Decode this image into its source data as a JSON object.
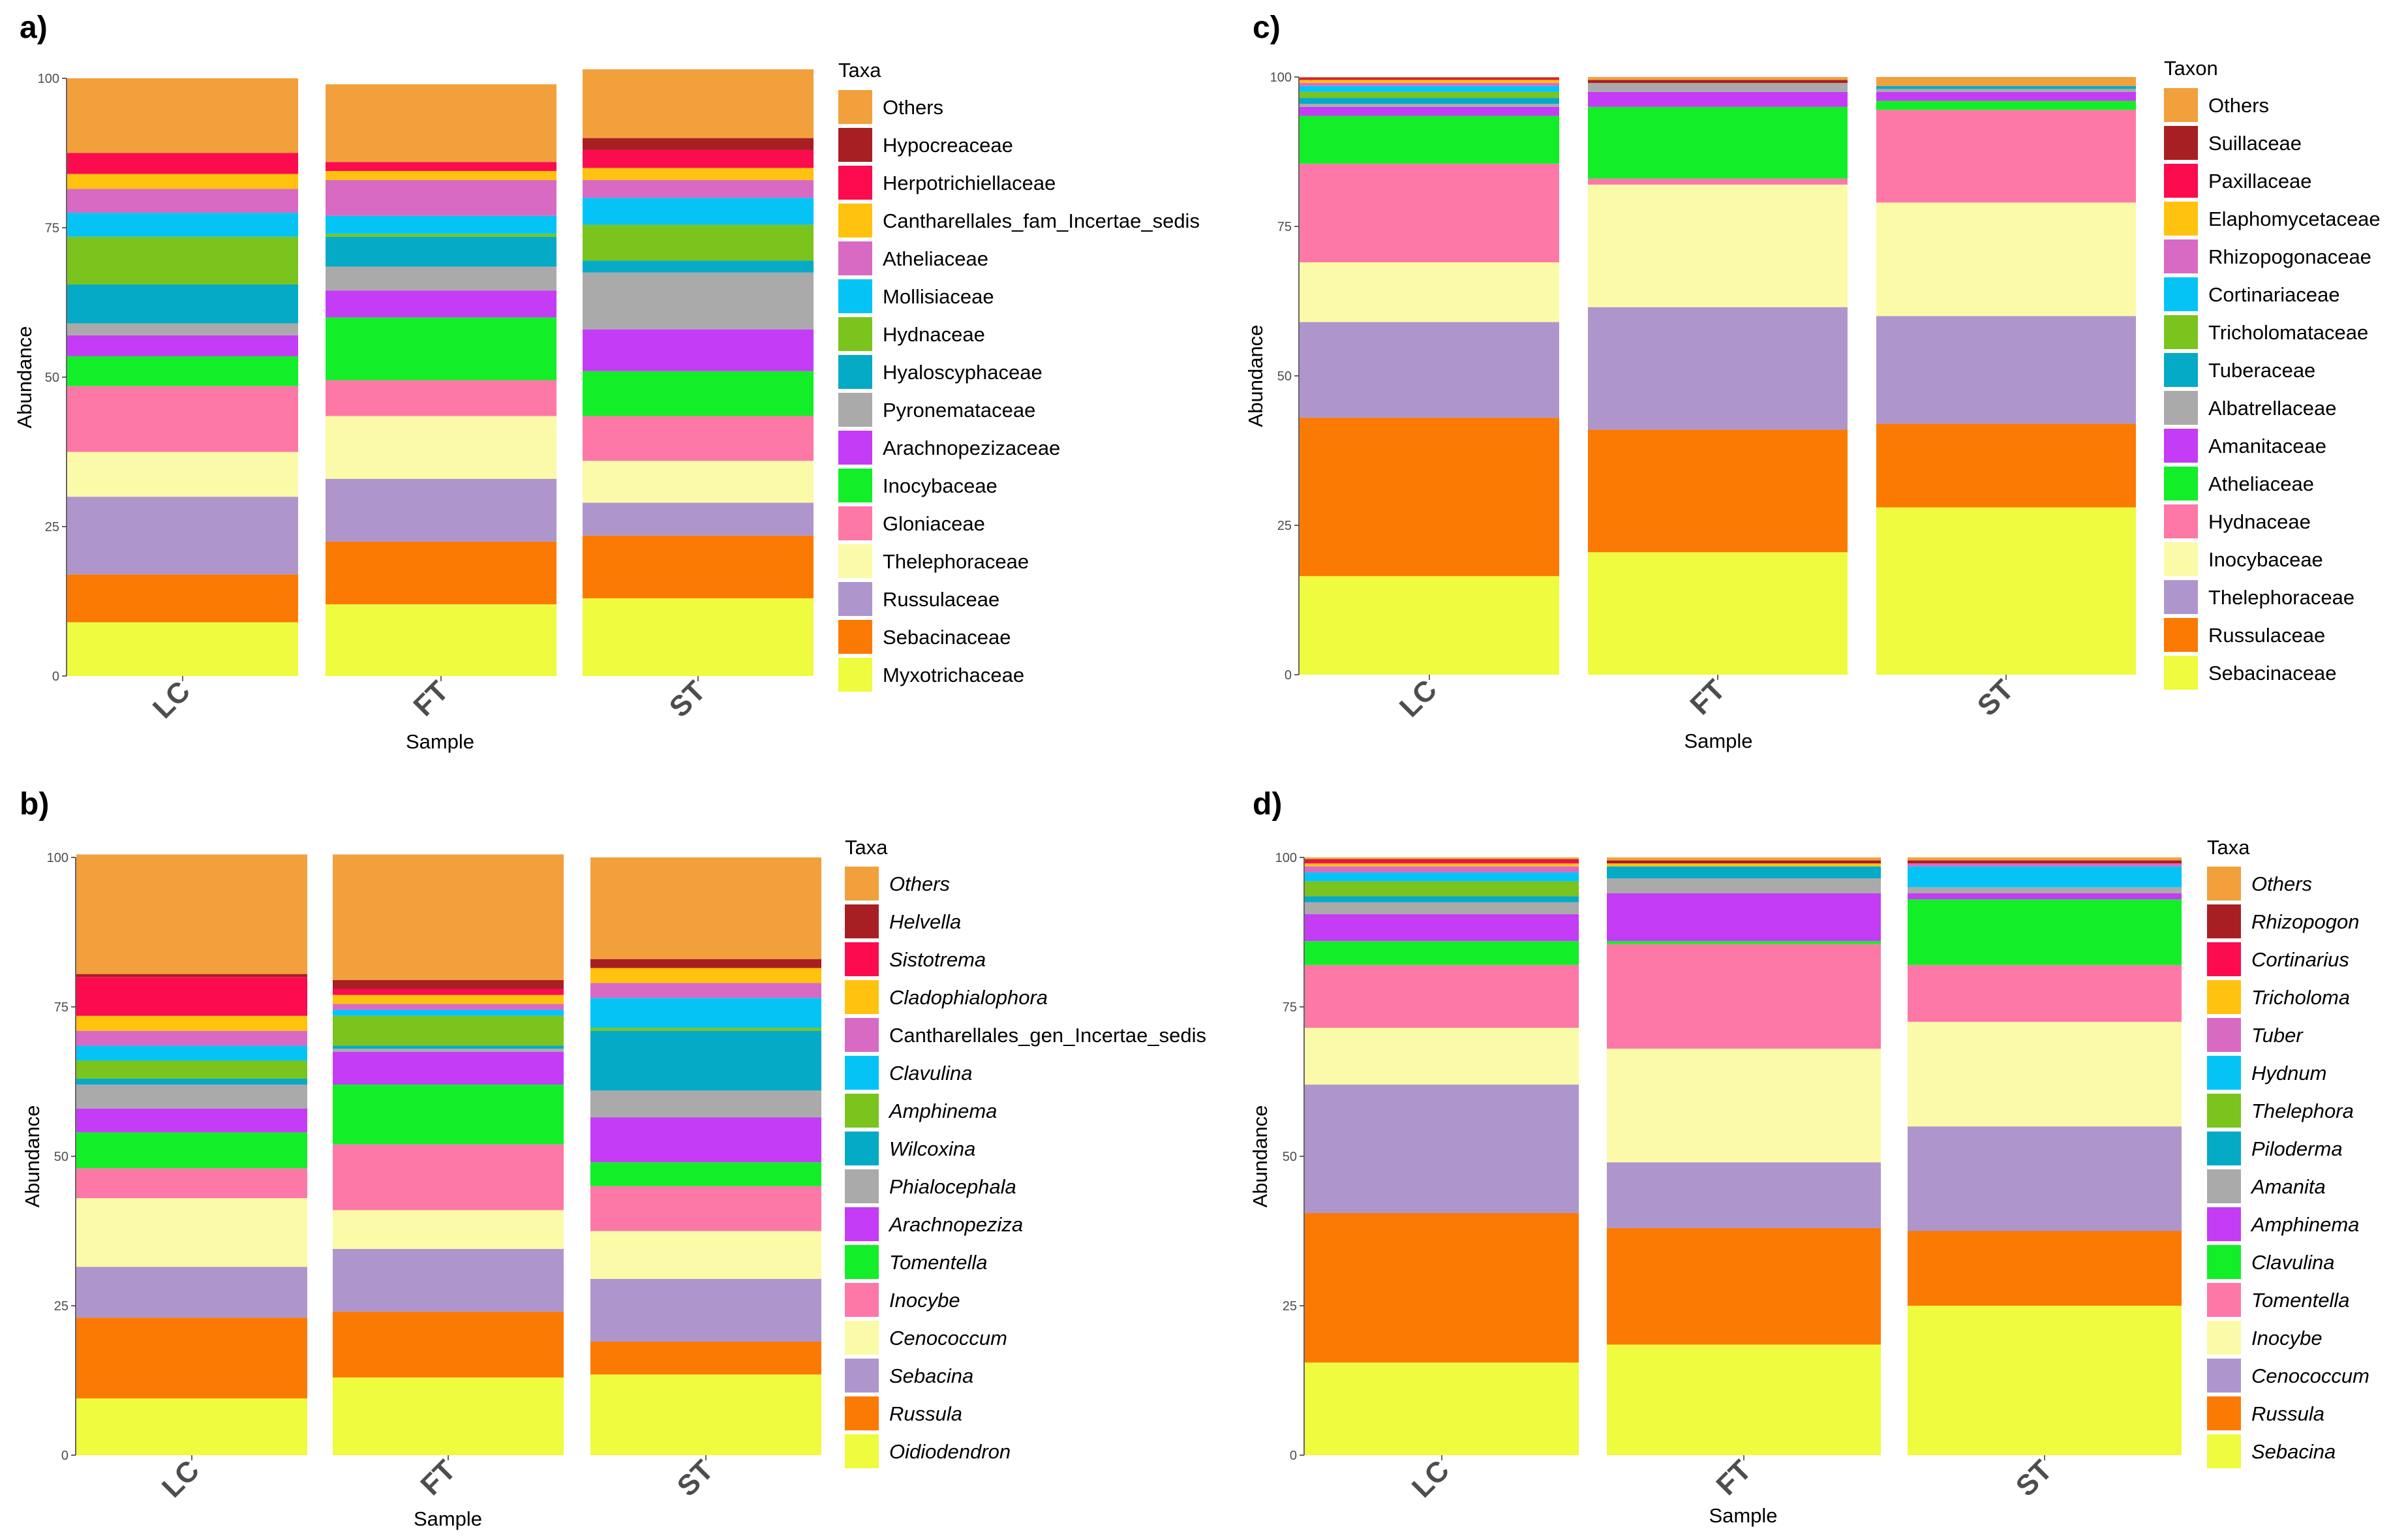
{
  "chart_data": [
    {
      "panel": "a)",
      "type": "bar",
      "stacked": true,
      "categories": [
        "LC",
        "FT",
        "ST"
      ],
      "xlabel": "Sample",
      "ylabel": "Abundance",
      "ylim": [
        0,
        100
      ],
      "yticks": [
        0,
        25,
        50,
        75,
        100
      ],
      "legend_title": "Taxa",
      "legend_italic": false,
      "series": [
        {
          "name": "Myxotrichaceae",
          "color": "#eefb3e",
          "values": [
            9,
            12,
            13
          ]
        },
        {
          "name": "Sebacinaceae",
          "color": "#fb7a03",
          "values": [
            8,
            10.5,
            10.5
          ]
        },
        {
          "name": "Russulaceae",
          "color": "#ae96cd",
          "values": [
            13,
            10.5,
            5.5
          ]
        },
        {
          "name": "Thelephoraceae",
          "color": "#fbfaa8",
          "values": [
            7.5,
            10.5,
            7
          ]
        },
        {
          "name": "Gloniaceae",
          "color": "#fd78a6",
          "values": [
            11,
            6,
            7.5
          ]
        },
        {
          "name": "Inocybaceae",
          "color": "#12ef28",
          "values": [
            5,
            10.5,
            7.5
          ]
        },
        {
          "name": "Arachnopezizaceae",
          "color": "#c43cf5",
          "values": [
            3.5,
            4.5,
            7
          ]
        },
        {
          "name": "Pyronemataceae",
          "color": "#aaaaaa",
          "values": [
            2,
            4,
            9.5
          ]
        },
        {
          "name": "Hyaloscyphaceae",
          "color": "#05aac6",
          "values": [
            6.5,
            5,
            2
          ]
        },
        {
          "name": "Hydnaceae",
          "color": "#7ac41d",
          "values": [
            8,
            0.5,
            6
          ]
        },
        {
          "name": "Mollisiaceae",
          "color": "#05c4f5",
          "values": [
            4,
            3,
            4.5
          ]
        },
        {
          "name": "Atheliaceae",
          "color": "#d86ac4",
          "values": [
            4,
            6,
            3
          ]
        },
        {
          "name": "Cantharellales_fam_Incertae_sedis",
          "color": "#ffc20e",
          "values": [
            2.5,
            1.5,
            2
          ]
        },
        {
          "name": "Herpotrichiellaceae",
          "color": "#fc0b4e",
          "values": [
            3.5,
            1.5,
            3
          ]
        },
        {
          "name": "Hypocreaceae",
          "color": "#a81f23",
          "values": [
            0,
            0,
            2
          ]
        },
        {
          "name": "Others",
          "color": "#f2a03c",
          "values": [
            12.5,
            13,
            11.5
          ]
        }
      ]
    },
    {
      "panel": "b)",
      "type": "bar",
      "stacked": true,
      "categories": [
        "LC",
        "FT",
        "ST"
      ],
      "xlabel": "Sample",
      "ylabel": "Abundance",
      "ylim": [
        0,
        100
      ],
      "yticks": [
        0,
        25,
        50,
        75,
        100
      ],
      "legend_title": "Taxa",
      "legend_italic": true,
      "legend_roman": [
        "Cantharellales_gen_Incertae_sedis"
      ],
      "series": [
        {
          "name": "Oidiodendron",
          "color": "#eefb3e",
          "values": [
            9.5,
            13,
            13.5
          ]
        },
        {
          "name": "Russula",
          "color": "#fb7a03",
          "values": [
            13.5,
            11,
            5.5
          ]
        },
        {
          "name": "Sebacina",
          "color": "#ae96cd",
          "values": [
            8.5,
            10.5,
            10.5
          ]
        },
        {
          "name": "Cenococcum",
          "color": "#fbfaa8",
          "values": [
            11.5,
            6.5,
            8
          ]
        },
        {
          "name": "Inocybe",
          "color": "#fd78a6",
          "values": [
            5,
            11,
            7.5
          ]
        },
        {
          "name": "Tomentella",
          "color": "#12ef28",
          "values": [
            6,
            10,
            4
          ]
        },
        {
          "name": "Arachnopeziza",
          "color": "#c43cf5",
          "values": [
            4,
            5.5,
            7.5
          ]
        },
        {
          "name": "Phialocephala",
          "color": "#aaaaaa",
          "values": [
            4,
            0.5,
            4.5
          ]
        },
        {
          "name": "Wilcoxina",
          "color": "#05aac6",
          "values": [
            1,
            0.5,
            10
          ]
        },
        {
          "name": "Amphinema",
          "color": "#7ac41d",
          "values": [
            3,
            5,
            0.5
          ]
        },
        {
          "name": "Clavulina",
          "color": "#05c4f5",
          "values": [
            2.5,
            1,
            5
          ]
        },
        {
          "name": "Cantharellales_gen_Incertae_sedis",
          "color": "#d86ac4",
          "values": [
            2.5,
            1,
            2.5
          ]
        },
        {
          "name": "Cladophialophora",
          "color": "#ffc20e",
          "values": [
            2.5,
            1.5,
            2.5
          ]
        },
        {
          "name": "Sistotrema",
          "color": "#fc0b4e",
          "values": [
            6.5,
            1,
            0
          ]
        },
        {
          "name": "Helvella",
          "color": "#a81f23",
          "values": [
            0.5,
            1.5,
            1.5
          ]
        },
        {
          "name": "Others",
          "color": "#f2a03c",
          "values": [
            20,
            21,
            17
          ]
        }
      ]
    },
    {
      "panel": "c)",
      "type": "bar",
      "stacked": true,
      "categories": [
        "LC",
        "FT",
        "ST"
      ],
      "xlabel": "Sample",
      "ylabel": "Abundance",
      "ylim": [
        0,
        100
      ],
      "yticks": [
        0,
        25,
        50,
        75,
        100
      ],
      "legend_title": "Taxon",
      "legend_italic": false,
      "series": [
        {
          "name": "Sebacinaceae",
          "color": "#eefb3e",
          "values": [
            16.5,
            20.5,
            28
          ]
        },
        {
          "name": "Russulaceae",
          "color": "#fb7a03",
          "values": [
            26.5,
            20.5,
            14
          ]
        },
        {
          "name": "Thelephoraceae",
          "color": "#ae96cd",
          "values": [
            16,
            20.5,
            18
          ]
        },
        {
          "name": "Inocybaceae",
          "color": "#fbfaa8",
          "values": [
            10,
            20.5,
            19
          ]
        },
        {
          "name": "Hydnaceae",
          "color": "#fd78a6",
          "values": [
            16.5,
            1,
            15.5
          ]
        },
        {
          "name": "Atheliaceae",
          "color": "#12ef28",
          "values": [
            8,
            12,
            1.5
          ]
        },
        {
          "name": "Amanitaceae",
          "color": "#c43cf5",
          "values": [
            1.5,
            2.5,
            1.5
          ]
        },
        {
          "name": "Albatrellaceae",
          "color": "#aaaaaa",
          "values": [
            0.5,
            1.5,
            0.5
          ]
        },
        {
          "name": "Tuberaceae",
          "color": "#05aac6",
          "values": [
            1,
            0,
            0.5
          ]
        },
        {
          "name": "Tricholomataceae",
          "color": "#7ac41d",
          "values": [
            1,
            0,
            0
          ]
        },
        {
          "name": "Cortinariaceae",
          "color": "#05c4f5",
          "values": [
            1,
            0,
            0
          ]
        },
        {
          "name": "Rhizopogonaceae",
          "color": "#d86ac4",
          "values": [
            0.5,
            0,
            0
          ]
        },
        {
          "name": "Elaphomycetaceae",
          "color": "#ffc20e",
          "values": [
            0.5,
            0,
            0
          ]
        },
        {
          "name": "Paxillaceae",
          "color": "#fc0b4e",
          "values": [
            0.2,
            0,
            0
          ]
        },
        {
          "name": "Suillaceae",
          "color": "#a81f23",
          "values": [
            0.2,
            0.5,
            0
          ]
        },
        {
          "name": "Others",
          "color": "#f2a03c",
          "values": [
            0.1,
            0.5,
            1.5
          ]
        }
      ]
    },
    {
      "panel": "d)",
      "type": "bar",
      "stacked": true,
      "categories": [
        "LC",
        "FT",
        "ST"
      ],
      "xlabel": "Sample",
      "ylabel": "Abundance",
      "ylim": [
        0,
        100
      ],
      "yticks": [
        0,
        25,
        50,
        75,
        100
      ],
      "legend_title": "Taxa",
      "legend_italic": true,
      "series": [
        {
          "name": "Sebacina",
          "color": "#eefb3e",
          "values": [
            15.5,
            18.5,
            25
          ]
        },
        {
          "name": "Russula",
          "color": "#fb7a03",
          "values": [
            25,
            19.5,
            12.5
          ]
        },
        {
          "name": "Cenococcum",
          "color": "#ae96cd",
          "values": [
            21.5,
            11,
            17.5
          ]
        },
        {
          "name": "Inocybe",
          "color": "#fbfaa8",
          "values": [
            9.5,
            19,
            17.5
          ]
        },
        {
          "name": "Tomentella",
          "color": "#fd78a6",
          "values": [
            10.5,
            17.5,
            9.5
          ]
        },
        {
          "name": "Clavulina",
          "color": "#12ef28",
          "values": [
            4,
            0.5,
            11
          ]
        },
        {
          "name": "Amphinema",
          "color": "#c43cf5",
          "values": [
            4.5,
            8,
            1
          ]
        },
        {
          "name": "Amanita",
          "color": "#aaaaaa",
          "values": [
            2,
            2.5,
            1
          ]
        },
        {
          "name": "Piloderma",
          "color": "#05aac6",
          "values": [
            1,
            2,
            0
          ]
        },
        {
          "name": "Thelephora",
          "color": "#7ac41d",
          "values": [
            2.5,
            0,
            0
          ]
        },
        {
          "name": "Hydnum",
          "color": "#05c4f5",
          "values": [
            1.5,
            0,
            3.5
          ]
        },
        {
          "name": "Tuber",
          "color": "#d86ac4",
          "values": [
            1,
            0,
            0.5
          ]
        },
        {
          "name": "Tricholoma",
          "color": "#ffc20e",
          "values": [
            0.5,
            0.5,
            0
          ]
        },
        {
          "name": "Cortinarius",
          "color": "#fc0b4e",
          "values": [
            0.5,
            0,
            0
          ]
        },
        {
          "name": "Rhizopogon",
          "color": "#a81f23",
          "values": [
            0.2,
            0.5,
            0.5
          ]
        },
        {
          "name": "Others",
          "color": "#f2a03c",
          "values": [
            0.3,
            0.5,
            0.5
          ]
        }
      ]
    }
  ]
}
